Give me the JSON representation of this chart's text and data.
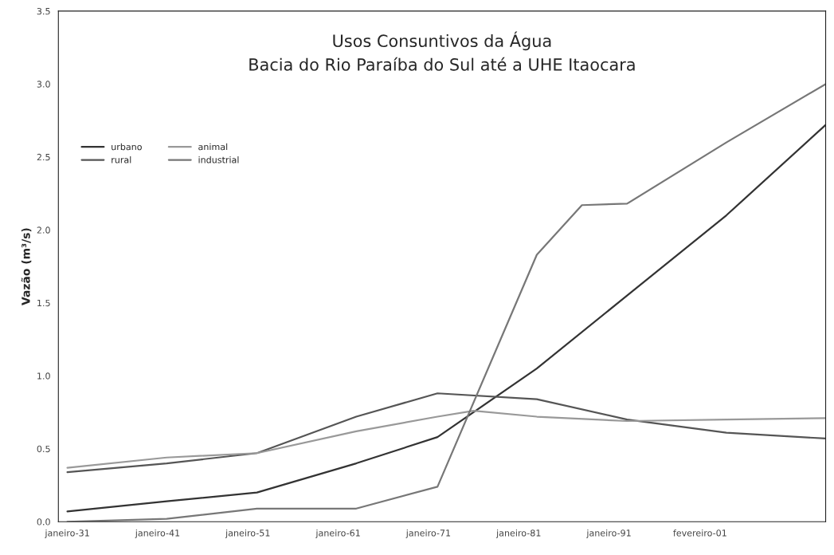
{
  "chart_data": {
    "type": "line",
    "title": "Usos Consuntivos da Água\nBacia do Rio Paraíba do Sul até a UHE Itaocara",
    "ylabel": "Vazão (m³/s)",
    "xlim": [
      "1930-01",
      "2015-01"
    ],
    "ylim": [
      0,
      3.5
    ],
    "xticks": [
      {
        "value": "1931-01",
        "label": "janeiro-31"
      },
      {
        "value": "1941-01",
        "label": "janeiro-41"
      },
      {
        "value": "1951-01",
        "label": "janeiro-51"
      },
      {
        "value": "1961-01",
        "label": "janeiro-61"
      },
      {
        "value": "1971-01",
        "label": "janeiro-71"
      },
      {
        "value": "1981-01",
        "label": "janeiro-81"
      },
      {
        "value": "1991-01",
        "label": "janeiro-91"
      },
      {
        "value": "2001-02",
        "label": "fevereiro-01"
      }
    ],
    "yticks": [
      {
        "value": 0,
        "label": "0.0"
      },
      {
        "value": 0.5,
        "label": "0.5"
      },
      {
        "value": 1,
        "label": "1.0"
      },
      {
        "value": 1.5,
        "label": "1.5"
      },
      {
        "value": 2,
        "label": "2.0"
      },
      {
        "value": 2.5,
        "label": "2.5"
      },
      {
        "value": 3,
        "label": "3.0"
      },
      {
        "value": 3.5,
        "label": "3.5"
      }
    ],
    "grid": false,
    "legend": "left",
    "marker": "none",
    "line_style": "solid",
    "series": [
      {
        "name": "urbano",
        "color": "#333333",
        "x": [
          "1931-01",
          "1942-01",
          "1952-01",
          "1963-01",
          "1972-01",
          "1983-01",
          "1993-01",
          "2004-01",
          "2015-01"
        ],
        "values": [
          0.07,
          0.14,
          0.2,
          0.4,
          0.58,
          1.05,
          1.55,
          2.1,
          2.72
        ]
      },
      {
        "name": "rural",
        "color": "#555555",
        "x": [
          "1931-01",
          "1942-01",
          "1952-01",
          "1963-01",
          "1972-01",
          "1983-01",
          "1993-01",
          "2004-01",
          "2015-01"
        ],
        "values": [
          0.34,
          0.4,
          0.47,
          0.72,
          0.88,
          0.84,
          0.7,
          0.61,
          0.57
        ]
      },
      {
        "name": "animal",
        "color": "#999999",
        "x": [
          "1931-01",
          "1942-01",
          "1952-01",
          "1963-01",
          "1972-01",
          "1976-01",
          "1983-01",
          "1993-01",
          "2004-01",
          "2015-01"
        ],
        "values": [
          0.37,
          0.44,
          0.47,
          0.62,
          0.72,
          0.76,
          0.72,
          0.69,
          0.7,
          0.71
        ]
      },
      {
        "name": "industrial",
        "color": "#777777",
        "x": [
          "1931-01",
          "1942-01",
          "1952-01",
          "1963-01",
          "1972-01",
          "1983-01",
          "1988-01",
          "1993-01",
          "2004-01",
          "2015-01"
        ],
        "values": [
          0.0,
          0.02,
          0.09,
          0.09,
          0.24,
          1.83,
          2.17,
          2.18,
          2.6,
          3.0
        ]
      }
    ]
  }
}
